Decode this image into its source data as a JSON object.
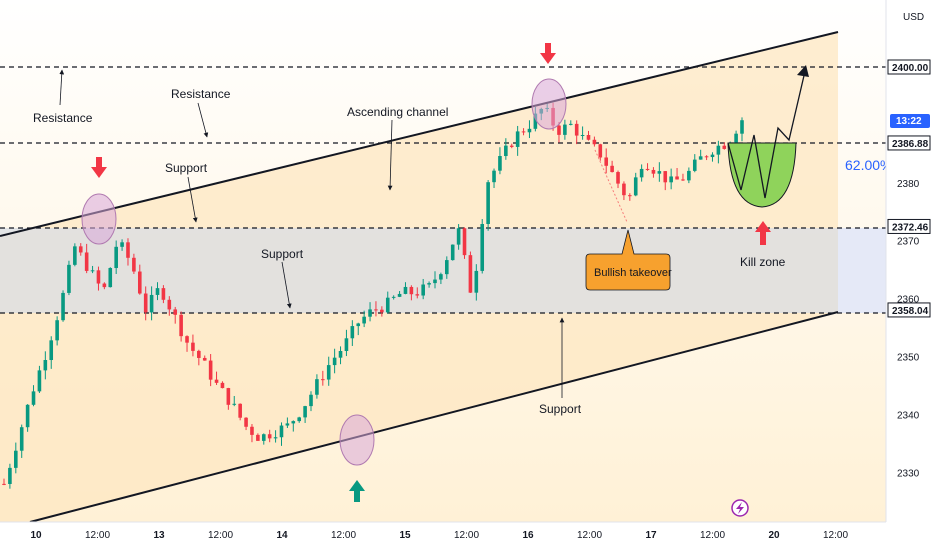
{
  "chart_data": {
    "type": "candlestick",
    "currency": "USD",
    "y_range": [
      2323,
      2412
    ],
    "y_ticks": [
      2330,
      2340,
      2350,
      2360,
      2370,
      2380
    ],
    "x_ticks": [
      "10",
      "12:00",
      "13",
      "12:00",
      "14",
      "12:00",
      "15",
      "12:00",
      "16",
      "12:00",
      "17",
      "12:00",
      "20",
      "12:00"
    ],
    "levels": [
      {
        "value": 2400.0,
        "label": "2400.00"
      },
      {
        "value": 2386.88,
        "label": "2386.88"
      },
      {
        "value": 2372.46,
        "label": "2372.46"
      },
      {
        "value": 2358.04,
        "label": "2358.04"
      }
    ],
    "current_price_tag": "13:22",
    "fib_label": "62.00%",
    "annotations": {
      "resistance_1": "Resistance",
      "resistance_2": "Resistance",
      "support_1": "Support",
      "support_2": "Support",
      "support_3": "Support",
      "ascending_channel": "Ascending channel",
      "bullish_takeover": "Bullish takeover",
      "kill_zone": "Kill zone"
    },
    "close_path": [
      2328,
      2336,
      2344,
      2351,
      2359,
      2369,
      2365,
      2361,
      2370,
      2366,
      2358,
      2362,
      2357,
      2352,
      2349,
      2345,
      2342,
      2338,
      2336,
      2337,
      2338,
      2341,
      2345,
      2349,
      2352,
      2356,
      2358,
      2359,
      2361,
      2361,
      2362,
      2366,
      2372,
      2360,
      2380,
      2384,
      2388,
      2390,
      2393,
      2389,
      2390,
      2387,
      2385,
      2381,
      2377,
      2384,
      2382,
      2380,
      2381,
      2384,
      2386,
      2387,
      2391
    ]
  }
}
